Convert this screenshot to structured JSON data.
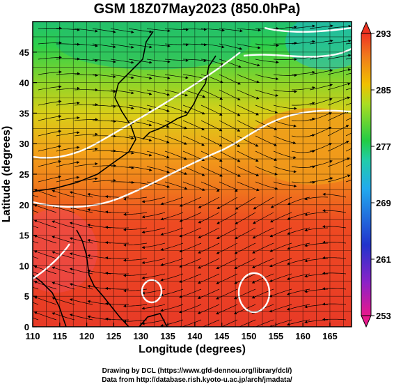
{
  "title": "GSM 18Z07May2023 (850.0hPa)",
  "x_axis": {
    "label": "Longitude (degrees)",
    "ticks": [
      "110",
      "115",
      "120",
      "125",
      "130",
      "135",
      "140",
      "145",
      "150",
      "155",
      "160",
      "165"
    ],
    "range": [
      110,
      169
    ]
  },
  "y_axis": {
    "label": "Latitude (degrees)",
    "ticks": [
      "0",
      "5",
      "10",
      "15",
      "20",
      "25",
      "30",
      "35",
      "40",
      "45"
    ],
    "range": [
      0,
      50
    ]
  },
  "colorbar": {
    "labels": [
      "293",
      "285",
      "277",
      "269",
      "261",
      "253"
    ],
    "range": [
      253,
      293
    ],
    "colors": [
      "#e8188c",
      "#2233cc",
      "#22aaee",
      "#22cc44",
      "#f0c000",
      "#ee3322"
    ]
  },
  "credits": {
    "line1": "Drawing by DCL (https://www.gfd-dennou.org/library/dcl/)",
    "line2": "Data from http://database.rish.kyoto-u.ac.jp/arch/jmadata/"
  },
  "chart_data": {
    "type": "heatmap",
    "field": "temperature with streamlines",
    "title": "GSM 18Z07May2023 (850.0hPa)",
    "xlabel": "Longitude (degrees)",
    "ylabel": "Latitude (degrees)",
    "xlim": [
      110,
      169
    ],
    "ylim": [
      0,
      50
    ],
    "colorbar_range": [
      253,
      293
    ],
    "colorbar_ticks": [
      253,
      261,
      269,
      277,
      285,
      293
    ],
    "grid": true
  }
}
